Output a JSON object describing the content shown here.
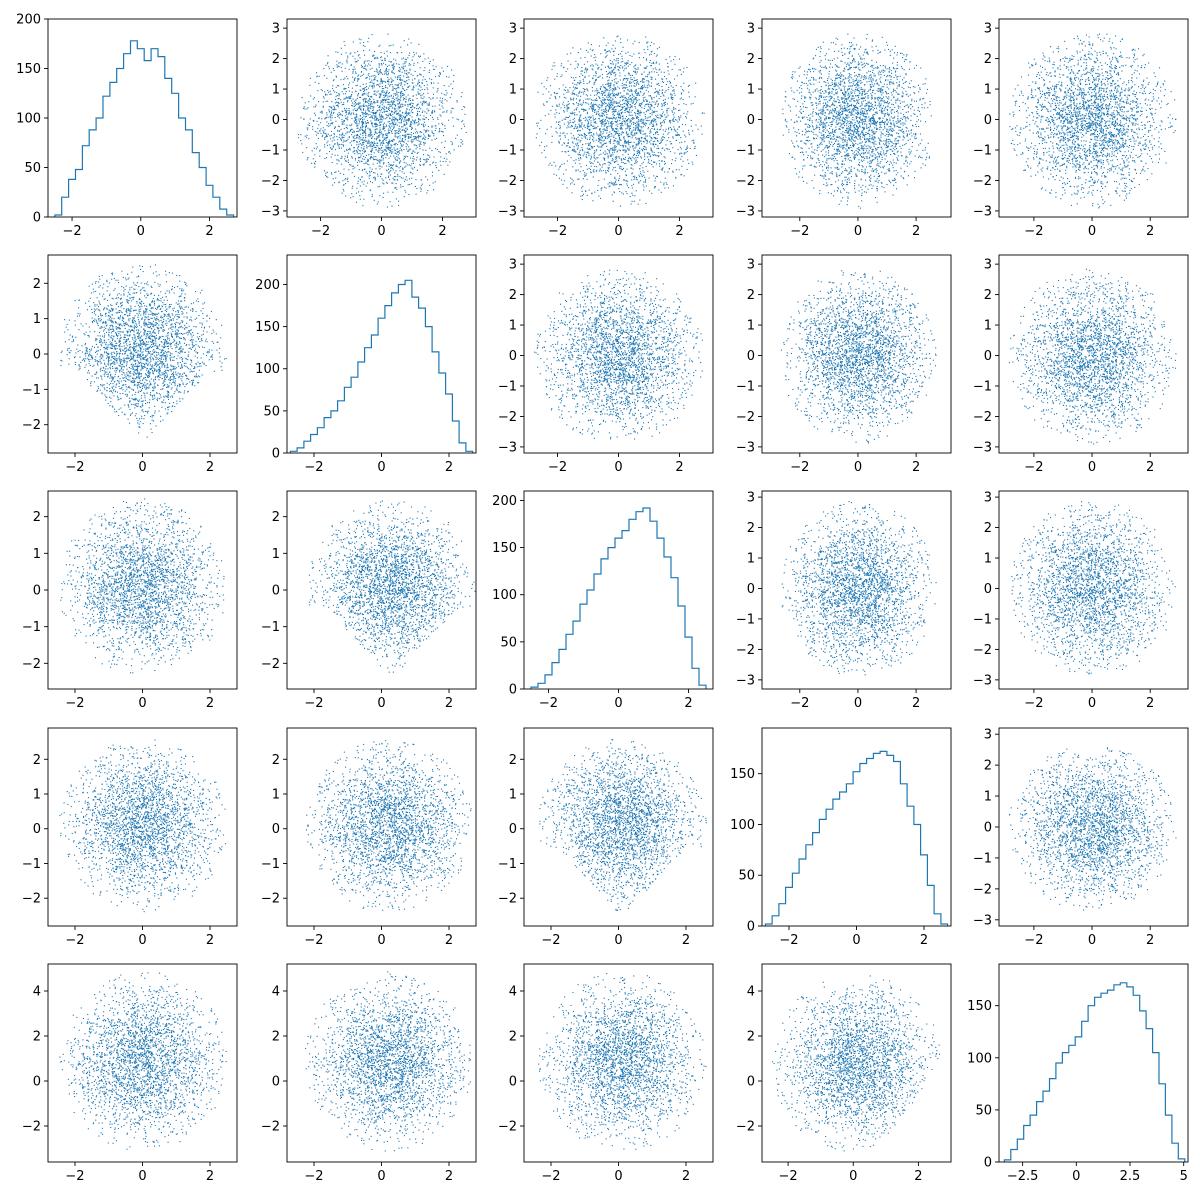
{
  "figure": {
    "rows": 5,
    "cols": 5,
    "point_color": "#1f77b4",
    "line_color": "#1f77b4"
  },
  "chart_data": [
    {
      "row": 0,
      "col": 0,
      "type": "histogram",
      "xlim": [
        -2.7,
        2.8
      ],
      "ylim": [
        0,
        200
      ],
      "xticks": [
        -2,
        0,
        2
      ],
      "yticks": [
        0,
        50,
        100,
        150,
        200
      ],
      "x": [
        -2.4,
        -2.2,
        -2.0,
        -1.8,
        -1.6,
        -1.4,
        -1.2,
        -1.0,
        -0.8,
        -0.6,
        -0.4,
        -0.2,
        0.0,
        0.2,
        0.4,
        0.6,
        0.8,
        1.0,
        1.2,
        1.4,
        1.6,
        1.8,
        2.0,
        2.2,
        2.4,
        2.6
      ],
      "y": [
        2,
        20,
        38,
        48,
        72,
        88,
        100,
        122,
        136,
        150,
        165,
        178,
        170,
        158,
        170,
        162,
        140,
        125,
        100,
        88,
        65,
        50,
        32,
        20,
        8,
        2
      ]
    },
    {
      "row": 0,
      "col": 1,
      "type": "scatter",
      "xlim": [
        -3.1,
        3.1
      ],
      "ylim": [
        -3.2,
        3.3
      ],
      "xticks": [
        -2,
        0,
        2
      ],
      "yticks": [
        -3,
        -2,
        -1,
        0,
        1,
        2,
        3
      ],
      "cloud": {
        "rx": 2.8,
        "ry": 2.9,
        "cx": 0,
        "cy": 0,
        "n": 2600,
        "shape": "round"
      }
    },
    {
      "row": 0,
      "col": 2,
      "type": "scatter",
      "xlim": [
        -3.1,
        3.1
      ],
      "ylim": [
        -3.2,
        3.3
      ],
      "xticks": [
        -2,
        0,
        2
      ],
      "yticks": [
        -3,
        -2,
        -1,
        0,
        1,
        2,
        3
      ],
      "cloud": {
        "rx": 2.8,
        "ry": 2.9,
        "cx": 0,
        "cy": 0,
        "n": 2600,
        "shape": "round"
      }
    },
    {
      "row": 0,
      "col": 3,
      "type": "scatter",
      "xlim": [
        -3.3,
        3.2
      ],
      "ylim": [
        -3.2,
        3.3
      ],
      "xticks": [
        -2,
        0,
        2
      ],
      "yticks": [
        -3,
        -2,
        -1,
        0,
        1,
        2,
        3
      ],
      "cloud": {
        "rx": 2.7,
        "ry": 2.9,
        "cx": 0,
        "cy": 0,
        "n": 2600,
        "shape": "round"
      }
    },
    {
      "row": 0,
      "col": 4,
      "type": "scatter",
      "xlim": [
        -3.2,
        3.3
      ],
      "ylim": [
        -3.2,
        3.3
      ],
      "xticks": [
        -2,
        0,
        2
      ],
      "yticks": [
        -3,
        -2,
        -1,
        0,
        1,
        2,
        3
      ],
      "cloud": {
        "rx": 2.9,
        "ry": 2.9,
        "cx": 0,
        "cy": 0,
        "n": 2600,
        "shape": "round"
      }
    },
    {
      "row": 1,
      "col": 0,
      "type": "scatter",
      "xlim": [
        -2.8,
        2.8
      ],
      "ylim": [
        -2.8,
        2.8
      ],
      "xticks": [
        -2,
        0,
        2
      ],
      "yticks": [
        -2,
        -1,
        0,
        1,
        2
      ],
      "cloud": {
        "rx": 2.5,
        "ry": 2.5,
        "cx": 0,
        "cy": 0.1,
        "n": 2600,
        "shape": "tri-down"
      }
    },
    {
      "row": 1,
      "col": 1,
      "type": "histogram",
      "xlim": [
        -2.8,
        2.8
      ],
      "ylim": [
        0,
        235
      ],
      "xticks": [
        -2,
        0,
        2
      ],
      "yticks": [
        0,
        50,
        100,
        150,
        200
      ],
      "x": [
        -2.6,
        -2.4,
        -2.2,
        -2.0,
        -1.8,
        -1.6,
        -1.4,
        -1.2,
        -1.0,
        -0.8,
        -0.6,
        -0.4,
        -0.2,
        0.0,
        0.2,
        0.4,
        0.6,
        0.8,
        1.0,
        1.2,
        1.4,
        1.6,
        1.8,
        2.0,
        2.2,
        2.4,
        2.6
      ],
      "y": [
        2,
        6,
        14,
        22,
        30,
        42,
        50,
        62,
        78,
        90,
        108,
        125,
        140,
        160,
        175,
        190,
        200,
        205,
        185,
        172,
        150,
        120,
        95,
        70,
        38,
        12,
        2
      ]
    },
    {
      "row": 1,
      "col": 2,
      "type": "scatter",
      "xlim": [
        -3.1,
        3.1
      ],
      "ylim": [
        -3.2,
        3.3
      ],
      "xticks": [
        -2,
        0,
        2
      ],
      "yticks": [
        -3,
        -2,
        -1,
        0,
        1,
        2,
        3
      ],
      "cloud": {
        "rx": 2.8,
        "ry": 2.9,
        "cx": 0,
        "cy": 0,
        "n": 2600,
        "shape": "round"
      }
    },
    {
      "row": 1,
      "col": 3,
      "type": "scatter",
      "xlim": [
        -3.3,
        3.2
      ],
      "ylim": [
        -3.2,
        3.3
      ],
      "xticks": [
        -2,
        0,
        2
      ],
      "yticks": [
        -3,
        -2,
        -1,
        0,
        1,
        2,
        3
      ],
      "cloud": {
        "rx": 2.7,
        "ry": 2.9,
        "cx": 0,
        "cy": 0,
        "n": 2600,
        "shape": "round"
      }
    },
    {
      "row": 1,
      "col": 4,
      "type": "scatter",
      "xlim": [
        -3.2,
        3.3
      ],
      "ylim": [
        -3.2,
        3.3
      ],
      "xticks": [
        -2,
        0,
        2
      ],
      "yticks": [
        -3,
        -2,
        -1,
        0,
        1,
        2,
        3
      ],
      "cloud": {
        "rx": 2.9,
        "ry": 2.9,
        "cx": 0,
        "cy": 0,
        "n": 2600,
        "shape": "round"
      }
    },
    {
      "row": 2,
      "col": 0,
      "type": "scatter",
      "xlim": [
        -2.8,
        2.8
      ],
      "ylim": [
        -2.7,
        2.7
      ],
      "xticks": [
        -2,
        0,
        2
      ],
      "yticks": [
        -2,
        -1,
        0,
        1,
        2
      ],
      "cloud": {
        "rx": 2.5,
        "ry": 2.4,
        "cx": 0,
        "cy": 0.1,
        "n": 2600,
        "shape": "round"
      }
    },
    {
      "row": 2,
      "col": 1,
      "type": "scatter",
      "xlim": [
        -2.8,
        2.8
      ],
      "ylim": [
        -2.7,
        2.7
      ],
      "xticks": [
        -2,
        0,
        2
      ],
      "yticks": [
        -2,
        -1,
        0,
        1,
        2
      ],
      "cloud": {
        "rx": 2.5,
        "ry": 2.4,
        "cx": 0.3,
        "cy": 0.1,
        "n": 2600,
        "shape": "tri-down"
      }
    },
    {
      "row": 2,
      "col": 2,
      "type": "histogram",
      "xlim": [
        -2.7,
        2.7
      ],
      "ylim": [
        0,
        210
      ],
      "xticks": [
        -2,
        0,
        2
      ],
      "yticks": [
        0,
        50,
        100,
        150,
        200
      ],
      "x": [
        -2.4,
        -2.2,
        -2.0,
        -1.8,
        -1.6,
        -1.4,
        -1.2,
        -1.0,
        -0.8,
        -0.6,
        -0.4,
        -0.2,
        0.0,
        0.2,
        0.4,
        0.6,
        0.8,
        1.0,
        1.2,
        1.4,
        1.6,
        1.8,
        2.0,
        2.2,
        2.4
      ],
      "y": [
        2,
        6,
        15,
        28,
        42,
        58,
        72,
        90,
        105,
        122,
        138,
        150,
        160,
        168,
        180,
        188,
        192,
        178,
        160,
        140,
        118,
        88,
        55,
        22,
        4
      ]
    },
    {
      "row": 2,
      "col": 3,
      "type": "scatter",
      "xlim": [
        -3.3,
        3.2
      ],
      "ylim": [
        -3.3,
        3.2
      ],
      "xticks": [
        -2,
        0,
        2
      ],
      "yticks": [
        -3,
        -2,
        -1,
        0,
        1,
        2,
        3
      ],
      "cloud": {
        "rx": 2.7,
        "ry": 2.9,
        "cx": 0,
        "cy": 0,
        "n": 2600,
        "shape": "round"
      }
    },
    {
      "row": 2,
      "col": 4,
      "type": "scatter",
      "xlim": [
        -3.2,
        3.3
      ],
      "ylim": [
        -3.3,
        3.2
      ],
      "xticks": [
        -2,
        0,
        2
      ],
      "yticks": [
        -3,
        -2,
        -1,
        0,
        1,
        2,
        3
      ],
      "cloud": {
        "rx": 2.9,
        "ry": 2.9,
        "cx": 0,
        "cy": 0,
        "n": 2600,
        "shape": "round"
      }
    },
    {
      "row": 3,
      "col": 0,
      "type": "scatter",
      "xlim": [
        -2.8,
        2.8
      ],
      "ylim": [
        -2.8,
        2.9
      ],
      "xticks": [
        -2,
        0,
        2
      ],
      "yticks": [
        -2,
        -1,
        0,
        1,
        2
      ],
      "cloud": {
        "rx": 2.5,
        "ry": 2.5,
        "cx": 0,
        "cy": 0.1,
        "n": 2600,
        "shape": "round"
      }
    },
    {
      "row": 3,
      "col": 1,
      "type": "scatter",
      "xlim": [
        -2.8,
        2.8
      ],
      "ylim": [
        -2.8,
        2.9
      ],
      "xticks": [
        -2,
        0,
        2
      ],
      "yticks": [
        -2,
        -1,
        0,
        1,
        2
      ],
      "cloud": {
        "rx": 2.5,
        "ry": 2.5,
        "cx": 0.2,
        "cy": 0.1,
        "n": 2600,
        "shape": "round"
      }
    },
    {
      "row": 3,
      "col": 2,
      "type": "scatter",
      "xlim": [
        -2.8,
        2.8
      ],
      "ylim": [
        -2.8,
        2.9
      ],
      "xticks": [
        -2,
        0,
        2
      ],
      "yticks": [
        -2,
        -1,
        0,
        1,
        2
      ],
      "cloud": {
        "rx": 2.5,
        "ry": 2.5,
        "cx": 0.1,
        "cy": 0.1,
        "n": 2600,
        "shape": "tri-down"
      }
    },
    {
      "row": 3,
      "col": 3,
      "type": "histogram",
      "xlim": [
        -2.8,
        2.8
      ],
      "ylim": [
        0,
        195
      ],
      "xticks": [
        -2,
        0,
        2
      ],
      "yticks": [
        0,
        50,
        100,
        150
      ],
      "x": [
        -2.6,
        -2.4,
        -2.2,
        -2.0,
        -1.8,
        -1.6,
        -1.4,
        -1.2,
        -1.0,
        -0.8,
        -0.6,
        -0.4,
        -0.2,
        0.0,
        0.2,
        0.4,
        0.6,
        0.8,
        1.0,
        1.2,
        1.4,
        1.6,
        1.8,
        2.0,
        2.2,
        2.4,
        2.6
      ],
      "y": [
        2,
        10,
        22,
        38,
        52,
        66,
        80,
        92,
        105,
        115,
        125,
        132,
        140,
        152,
        160,
        165,
        170,
        172,
        168,
        162,
        140,
        118,
        100,
        70,
        40,
        12,
        2
      ]
    },
    {
      "row": 3,
      "col": 4,
      "type": "scatter",
      "xlim": [
        -3.2,
        3.3
      ],
      "ylim": [
        -3.2,
        3.2
      ],
      "xticks": [
        -2,
        0,
        2
      ],
      "yticks": [
        -3,
        -2,
        -1,
        0,
        1,
        2,
        3
      ],
      "cloud": {
        "rx": 2.9,
        "ry": 2.7,
        "cx": 0,
        "cy": 0,
        "n": 2600,
        "shape": "round"
      }
    },
    {
      "row": 4,
      "col": 0,
      "type": "scatter",
      "xlim": [
        -2.8,
        2.8
      ],
      "ylim": [
        -3.6,
        5.2
      ],
      "xticks": [
        -2,
        0,
        2
      ],
      "yticks": [
        -2,
        0,
        2,
        4
      ],
      "cloud": {
        "rx": 2.5,
        "ry": 4.0,
        "cx": 0,
        "cy": 0.9,
        "n": 2600,
        "shape": "round"
      }
    },
    {
      "row": 4,
      "col": 1,
      "type": "scatter",
      "xlim": [
        -2.8,
        2.8
      ],
      "ylim": [
        -3.6,
        5.2
      ],
      "xticks": [
        -2,
        0,
        2
      ],
      "yticks": [
        -2,
        0,
        2,
        4
      ],
      "cloud": {
        "rx": 2.5,
        "ry": 4.0,
        "cx": 0.2,
        "cy": 0.9,
        "n": 2600,
        "shape": "round"
      }
    },
    {
      "row": 4,
      "col": 2,
      "type": "scatter",
      "xlim": [
        -2.8,
        2.8
      ],
      "ylim": [
        -3.6,
        5.2
      ],
      "xticks": [
        -2,
        0,
        2
      ],
      "yticks": [
        -2,
        0,
        2,
        4
      ],
      "cloud": {
        "rx": 2.5,
        "ry": 4.0,
        "cx": 0.1,
        "cy": 0.9,
        "n": 2600,
        "shape": "round"
      }
    },
    {
      "row": 4,
      "col": 3,
      "type": "scatter",
      "xlim": [
        -2.8,
        3.0
      ],
      "ylim": [
        -3.6,
        5.2
      ],
      "xticks": [
        -2,
        0,
        2
      ],
      "yticks": [
        -2,
        0,
        2,
        4
      ],
      "cloud": {
        "rx": 2.6,
        "ry": 4.0,
        "cx": 0.1,
        "cy": 0.8,
        "n": 2600,
        "shape": "bowl"
      }
    },
    {
      "row": 4,
      "col": 4,
      "type": "histogram",
      "xlim": [
        -3.6,
        5.2
      ],
      "ylim": [
        0,
        190
      ],
      "xticks": [
        -2.5,
        0.0,
        2.5,
        5.0
      ],
      "yticks": [
        0,
        50,
        100,
        150
      ],
      "x": [
        -3.2,
        -2.9,
        -2.6,
        -2.3,
        -2.0,
        -1.7,
        -1.4,
        -1.1,
        -0.8,
        -0.5,
        -0.2,
        0.1,
        0.4,
        0.7,
        1.0,
        1.3,
        1.6,
        1.9,
        2.2,
        2.5,
        2.8,
        3.1,
        3.4,
        3.7,
        4.0,
        4.3,
        4.6,
        4.9
      ],
      "y": [
        2,
        12,
        22,
        35,
        45,
        58,
        68,
        80,
        95,
        105,
        112,
        120,
        135,
        150,
        158,
        162,
        165,
        170,
        172,
        168,
        160,
        145,
        128,
        105,
        75,
        45,
        18,
        3
      ]
    }
  ]
}
